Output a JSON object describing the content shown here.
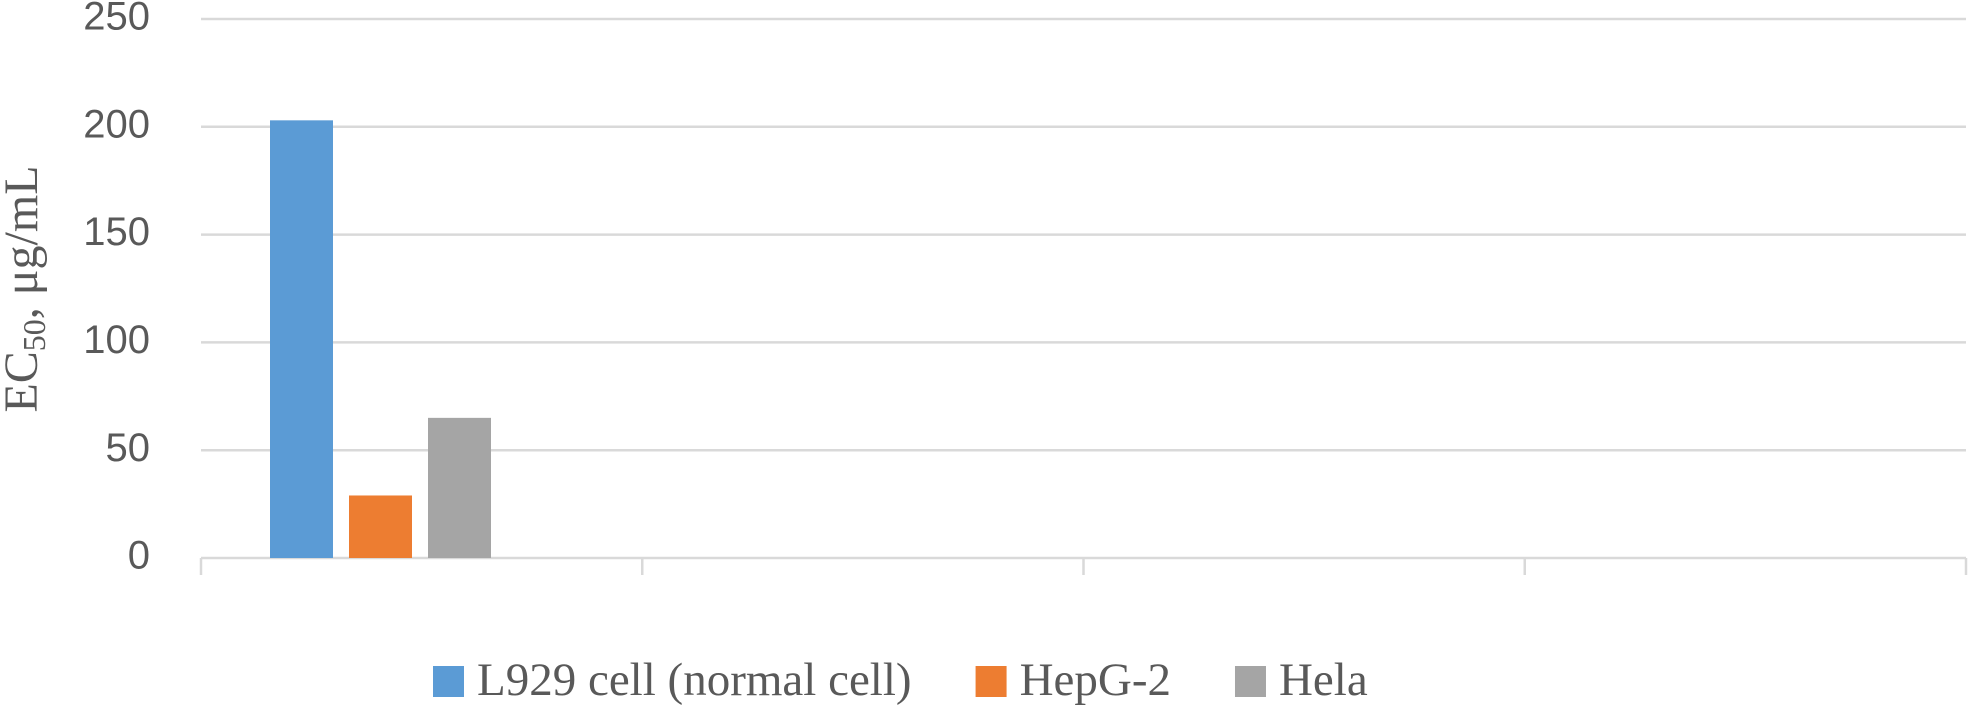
{
  "chart_data": {
    "type": "bar",
    "y_label": [
      "EC",
      "50",
      ", μg/mL"
    ],
    "categories": [
      null,
      null,
      null,
      null
    ],
    "series": [
      {
        "name": "L929 cell (normal cell)",
        "color": "#5b9bd5",
        "values": [
          203,
          null,
          null,
          null
        ]
      },
      {
        "name": "HepG-2",
        "color": "#ed7d31",
        "values": [
          29,
          null,
          null,
          null
        ]
      },
      {
        "name": "Hela",
        "color": "#a5a5a5",
        "values": [
          65,
          null,
          null,
          null
        ]
      }
    ],
    "ylim": [
      0,
      250
    ],
    "yticks": [
      0,
      50,
      100,
      150,
      200,
      250
    ],
    "grid": true,
    "legend": "bottom"
  }
}
